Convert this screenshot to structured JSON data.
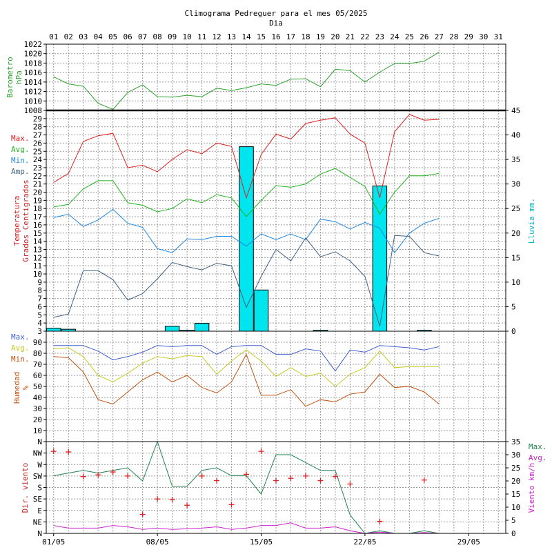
{
  "title": "Climograma Pedreguer para el mes 05/2025",
  "subtitle": "Dia",
  "days": [
    "01",
    "02",
    "03",
    "04",
    "05",
    "06",
    "07",
    "08",
    "09",
    "10",
    "11",
    "12",
    "13",
    "14",
    "15",
    "16",
    "17",
    "18",
    "19",
    "20",
    "21",
    "22",
    "23",
    "24",
    "25",
    "26",
    "27",
    "28",
    "29",
    "30",
    "31"
  ],
  "date_labels": [
    "01/05",
    "08/05",
    "15/05",
    "22/05",
    "29/05"
  ],
  "colors": {
    "pressure": "#2ca02c",
    "tmax": "#e02020",
    "tavg": "#20b020",
    "tmin": "#2088e0",
    "tamp": "#406080",
    "rain": "#00e5ee",
    "hmax": "#4060d0",
    "havg": "#c8c820",
    "hmin": "#c05010",
    "wdir": "#dd2020",
    "wmax": "#208050",
    "wavg": "#cc22cc"
  },
  "chart_data": [
    {
      "type": "line",
      "ylabel": [
        "Barometro",
        "hPa"
      ],
      "ylim": [
        1008,
        1022
      ],
      "yticks": [
        "1008",
        "1010",
        "1012",
        "1014",
        "1016",
        "1018",
        "1020",
        "1022"
      ],
      "grid": true,
      "series": [
        {
          "key": "pressure",
          "values": [
            1015.1,
            1013.6,
            1013.1,
            1009.5,
            1008.2,
            1011.8,
            1013.4,
            1010.9,
            1010.8,
            1011.2,
            1010.9,
            1012.7,
            1012.2,
            1012.8,
            1013.6,
            1013.3,
            1014.6,
            1014.7,
            1013.0,
            1016.7,
            1016.4,
            1014.0,
            1016.1,
            1017.9,
            1017.9,
            1018.4,
            1020.3
          ]
        }
      ]
    },
    {
      "type": "bar+line",
      "ylabel": [
        "Temperatura",
        "Grados Centigrados"
      ],
      "y2label": "Lluvia mm.",
      "ylim": [
        3,
        30
      ],
      "y2lim": [
        0,
        45
      ],
      "yticks": [
        "3",
        "4",
        "5",
        "6",
        "7",
        "8",
        "9",
        "10",
        "11",
        "12",
        "13",
        "14",
        "15",
        "16",
        "17",
        "18",
        "19",
        "20",
        "21",
        "22",
        "23",
        "24",
        "25",
        "26",
        "27",
        "28",
        "29"
      ],
      "y2ticks": [
        "0",
        "5",
        "10",
        "15",
        "20",
        "25",
        "30",
        "35",
        "40",
        "45"
      ],
      "grid": true,
      "legend": [
        {
          "label": "Max.",
          "color": "#e02020"
        },
        {
          "label": "Avg.",
          "color": "#20b020"
        },
        {
          "label": "Min.",
          "color": "#2088e0"
        },
        {
          "label": "Amp.",
          "color": "#406080"
        }
      ],
      "rain": [
        0.6,
        0.4,
        0,
        0,
        0,
        0,
        0,
        0,
        1.0,
        0.2,
        1.6,
        0,
        0,
        37.6,
        8.4,
        0,
        0,
        0,
        0.2,
        0,
        0,
        0,
        29.6,
        0,
        0,
        0.2,
        0
      ],
      "series": [
        {
          "key": "tmax",
          "values": [
            21.2,
            22.3,
            26.2,
            26.9,
            27.2,
            23.0,
            23.3,
            22.5,
            24.0,
            25.2,
            24.7,
            26.0,
            25.6,
            19.3,
            24.6,
            27.1,
            26.5,
            28.4,
            28.8,
            29.1,
            27.1,
            26.0,
            19.3,
            27.4,
            29.5,
            28.8,
            28.9
          ]
        },
        {
          "key": "tavg",
          "values": [
            18.2,
            18.5,
            20.4,
            21.4,
            21.4,
            18.7,
            18.4,
            17.6,
            18.0,
            19.2,
            18.7,
            19.7,
            19.3,
            17.0,
            19.0,
            20.8,
            20.6,
            21.0,
            22.2,
            22.9,
            21.8,
            20.7,
            17.3,
            20.0,
            22.0,
            22.0,
            22.3
          ]
        },
        {
          "key": "tmin",
          "values": [
            16.9,
            17.3,
            15.8,
            16.6,
            17.9,
            16.2,
            15.7,
            13.1,
            12.6,
            14.3,
            14.2,
            14.6,
            14.6,
            13.4,
            14.9,
            14.2,
            14.9,
            14.2,
            16.7,
            16.4,
            15.5,
            16.3,
            15.6,
            12.6,
            15.0,
            16.2,
            16.8
          ]
        },
        {
          "key": "tamp",
          "values": [
            4.7,
            5.1,
            10.4,
            10.4,
            9.3,
            6.8,
            7.6,
            9.4,
            11.4,
            10.9,
            10.5,
            11.3,
            11.0,
            5.9,
            9.7,
            13.0,
            11.6,
            14.4,
            12.1,
            12.7,
            11.6,
            9.7,
            3.6,
            14.7,
            14.6,
            12.6,
            12.2
          ]
        }
      ]
    },
    {
      "type": "line",
      "ylabel": [
        "Humedad",
        "%"
      ],
      "ylim": [
        0,
        100
      ],
      "yticks": [
        "10",
        "20",
        "30",
        "40",
        "50",
        "60",
        "70",
        "80",
        "90"
      ],
      "grid": true,
      "legend": [
        {
          "label": "Max.",
          "color": "#4060d0"
        },
        {
          "label": "Avg.",
          "color": "#c8c820"
        },
        {
          "label": "Min.",
          "color": "#c05010"
        }
      ],
      "series": [
        {
          "key": "hmax",
          "values": [
            87,
            87,
            87,
            82,
            74,
            77,
            81,
            87,
            86,
            87,
            87,
            79,
            86,
            87,
            87,
            79,
            79,
            84,
            82,
            64,
            83,
            81,
            87,
            86,
            85,
            83,
            86
          ]
        },
        {
          "key": "havg",
          "values": [
            84,
            85,
            77,
            60,
            54,
            62,
            71,
            77,
            75,
            78,
            77,
            61,
            73,
            83,
            73,
            59,
            67,
            59,
            62,
            50,
            61,
            67,
            82,
            67,
            68,
            68,
            68
          ]
        },
        {
          "key": "hmin",
          "values": [
            77,
            76,
            63,
            38,
            34,
            45,
            56,
            63,
            54,
            60,
            49,
            44,
            54,
            79,
            42,
            42,
            47,
            32,
            38,
            36,
            43,
            45,
            61,
            49,
            50,
            45,
            34
          ]
        }
      ]
    },
    {
      "type": "scatter+line",
      "ylabel": "Dir. viento",
      "y2label": "Viento km/h",
      "ylim": [
        0,
        8
      ],
      "y2lim": [
        0,
        35
      ],
      "yticks": [
        "N",
        "NE",
        "E",
        "SE",
        "S",
        "SW",
        "W",
        "NW",
        "N"
      ],
      "y2ticks": [
        "0",
        "5",
        "10",
        "15",
        "20",
        "25",
        "30",
        "35"
      ],
      "grid": true,
      "legend": [
        {
          "label": "Max.",
          "color": "#208050"
        },
        {
          "label": "Avg.",
          "color": "#cc22cc"
        }
      ],
      "direction": [
        7.15,
        7.1,
        4.95,
        5.1,
        5.35,
        5.0,
        1.65,
        3.0,
        2.95,
        2.45,
        5.0,
        4.6,
        2.5,
        5.15,
        7.15,
        4.6,
        4.8,
        5.0,
        4.6,
        4.95,
        4.3,
        null,
        1.05,
        null,
        null,
        4.65,
        null
      ],
      "series": [
        {
          "key": "wmax",
          "values": [
            22,
            23,
            24,
            23,
            24,
            25,
            20,
            35,
            18,
            18,
            24,
            25,
            22,
            22,
            15,
            30,
            30,
            27,
            24,
            24,
            7,
            0,
            1,
            0,
            0,
            1,
            0
          ]
        },
        {
          "key": "wavg",
          "values": [
            3,
            2,
            2,
            2,
            3,
            2.5,
            1.5,
            2,
            1.5,
            1.8,
            2,
            2.5,
            1.5,
            2,
            3,
            3,
            4,
            2,
            2,
            2.5,
            1,
            0,
            0.5,
            0,
            0,
            0.3,
            0
          ]
        }
      ]
    }
  ]
}
